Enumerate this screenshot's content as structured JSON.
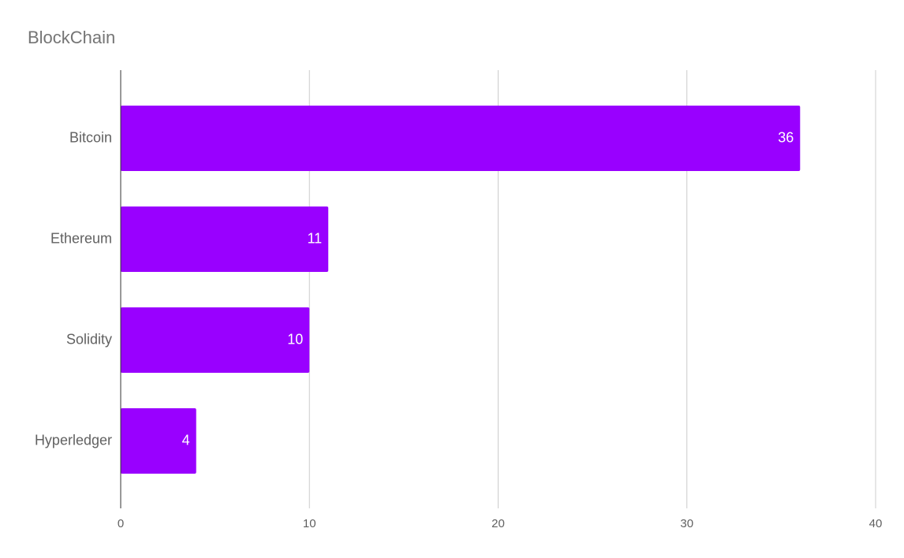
{
  "chart_data": {
    "type": "bar",
    "orientation": "horizontal",
    "title": "BlockChain",
    "categories": [
      "Bitcoin",
      "Ethereum",
      "Solidity",
      "Hyperledger"
    ],
    "values": [
      36,
      11,
      10,
      4
    ],
    "data_labels": [
      "36",
      "11",
      "10",
      "4"
    ],
    "xlim": [
      0,
      40
    ],
    "x_ticks": [
      0,
      10,
      20,
      30,
      40
    ],
    "x_tick_labels": [
      "0",
      "10",
      "20",
      "30",
      "40"
    ],
    "xlabel": "",
    "ylabel": "",
    "grid": true,
    "legend": "none",
    "colors": {
      "bar": "#9900ff",
      "grid": "#cccccc",
      "axis": "#333333",
      "text": "#616161",
      "title": "#757575",
      "data_label": "#ffffff"
    }
  }
}
